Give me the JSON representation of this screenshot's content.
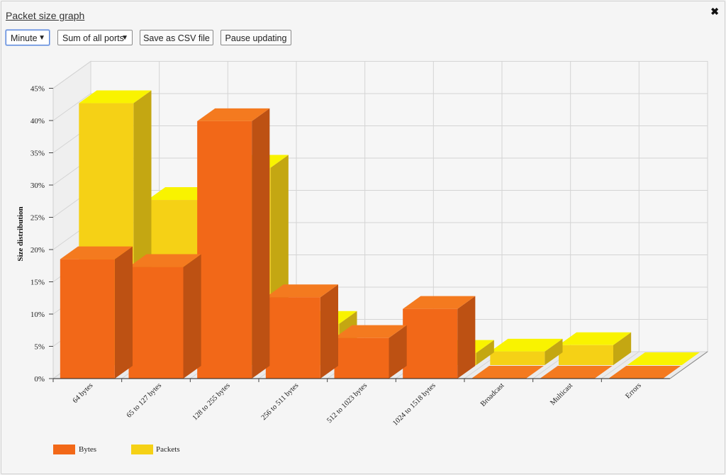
{
  "header": {
    "title": "Packet size graph",
    "close_glyph": "✖"
  },
  "toolbar": {
    "interval_value": "Minute",
    "ports_value": "Sum of all ports",
    "save_csv_label": "Save as CSV file",
    "pause_label": "Pause updating",
    "dropdown_arrow": "▼"
  },
  "chart_data": {
    "type": "bar",
    "ylabel": "Size distribution",
    "ylim": [
      0,
      45
    ],
    "yticks": [
      0,
      5,
      10,
      15,
      20,
      25,
      30,
      35,
      40,
      45
    ],
    "ytick_suffix": "%",
    "categories": [
      "64 bytes",
      "65 to 127 bytes",
      "128 to 255 bytes",
      "256 to 511 bytes",
      "512 to 1023 bytes",
      "1024 to 1518 bytes",
      "Broadcast",
      "Multicast",
      "Errors"
    ],
    "series": [
      {
        "name": "Bytes",
        "values": [
          18.5,
          17.3,
          39.9,
          12.6,
          6.3,
          10.8,
          0,
          0,
          0
        ],
        "color": "#f26818"
      },
      {
        "name": "Packets",
        "values": [
          40.6,
          25.6,
          30.6,
          6.4,
          2.0,
          1.9,
          2.1,
          3.1,
          0
        ],
        "color": "#f5d116"
      }
    ],
    "legend_position": "bottom-left",
    "grid": true
  }
}
